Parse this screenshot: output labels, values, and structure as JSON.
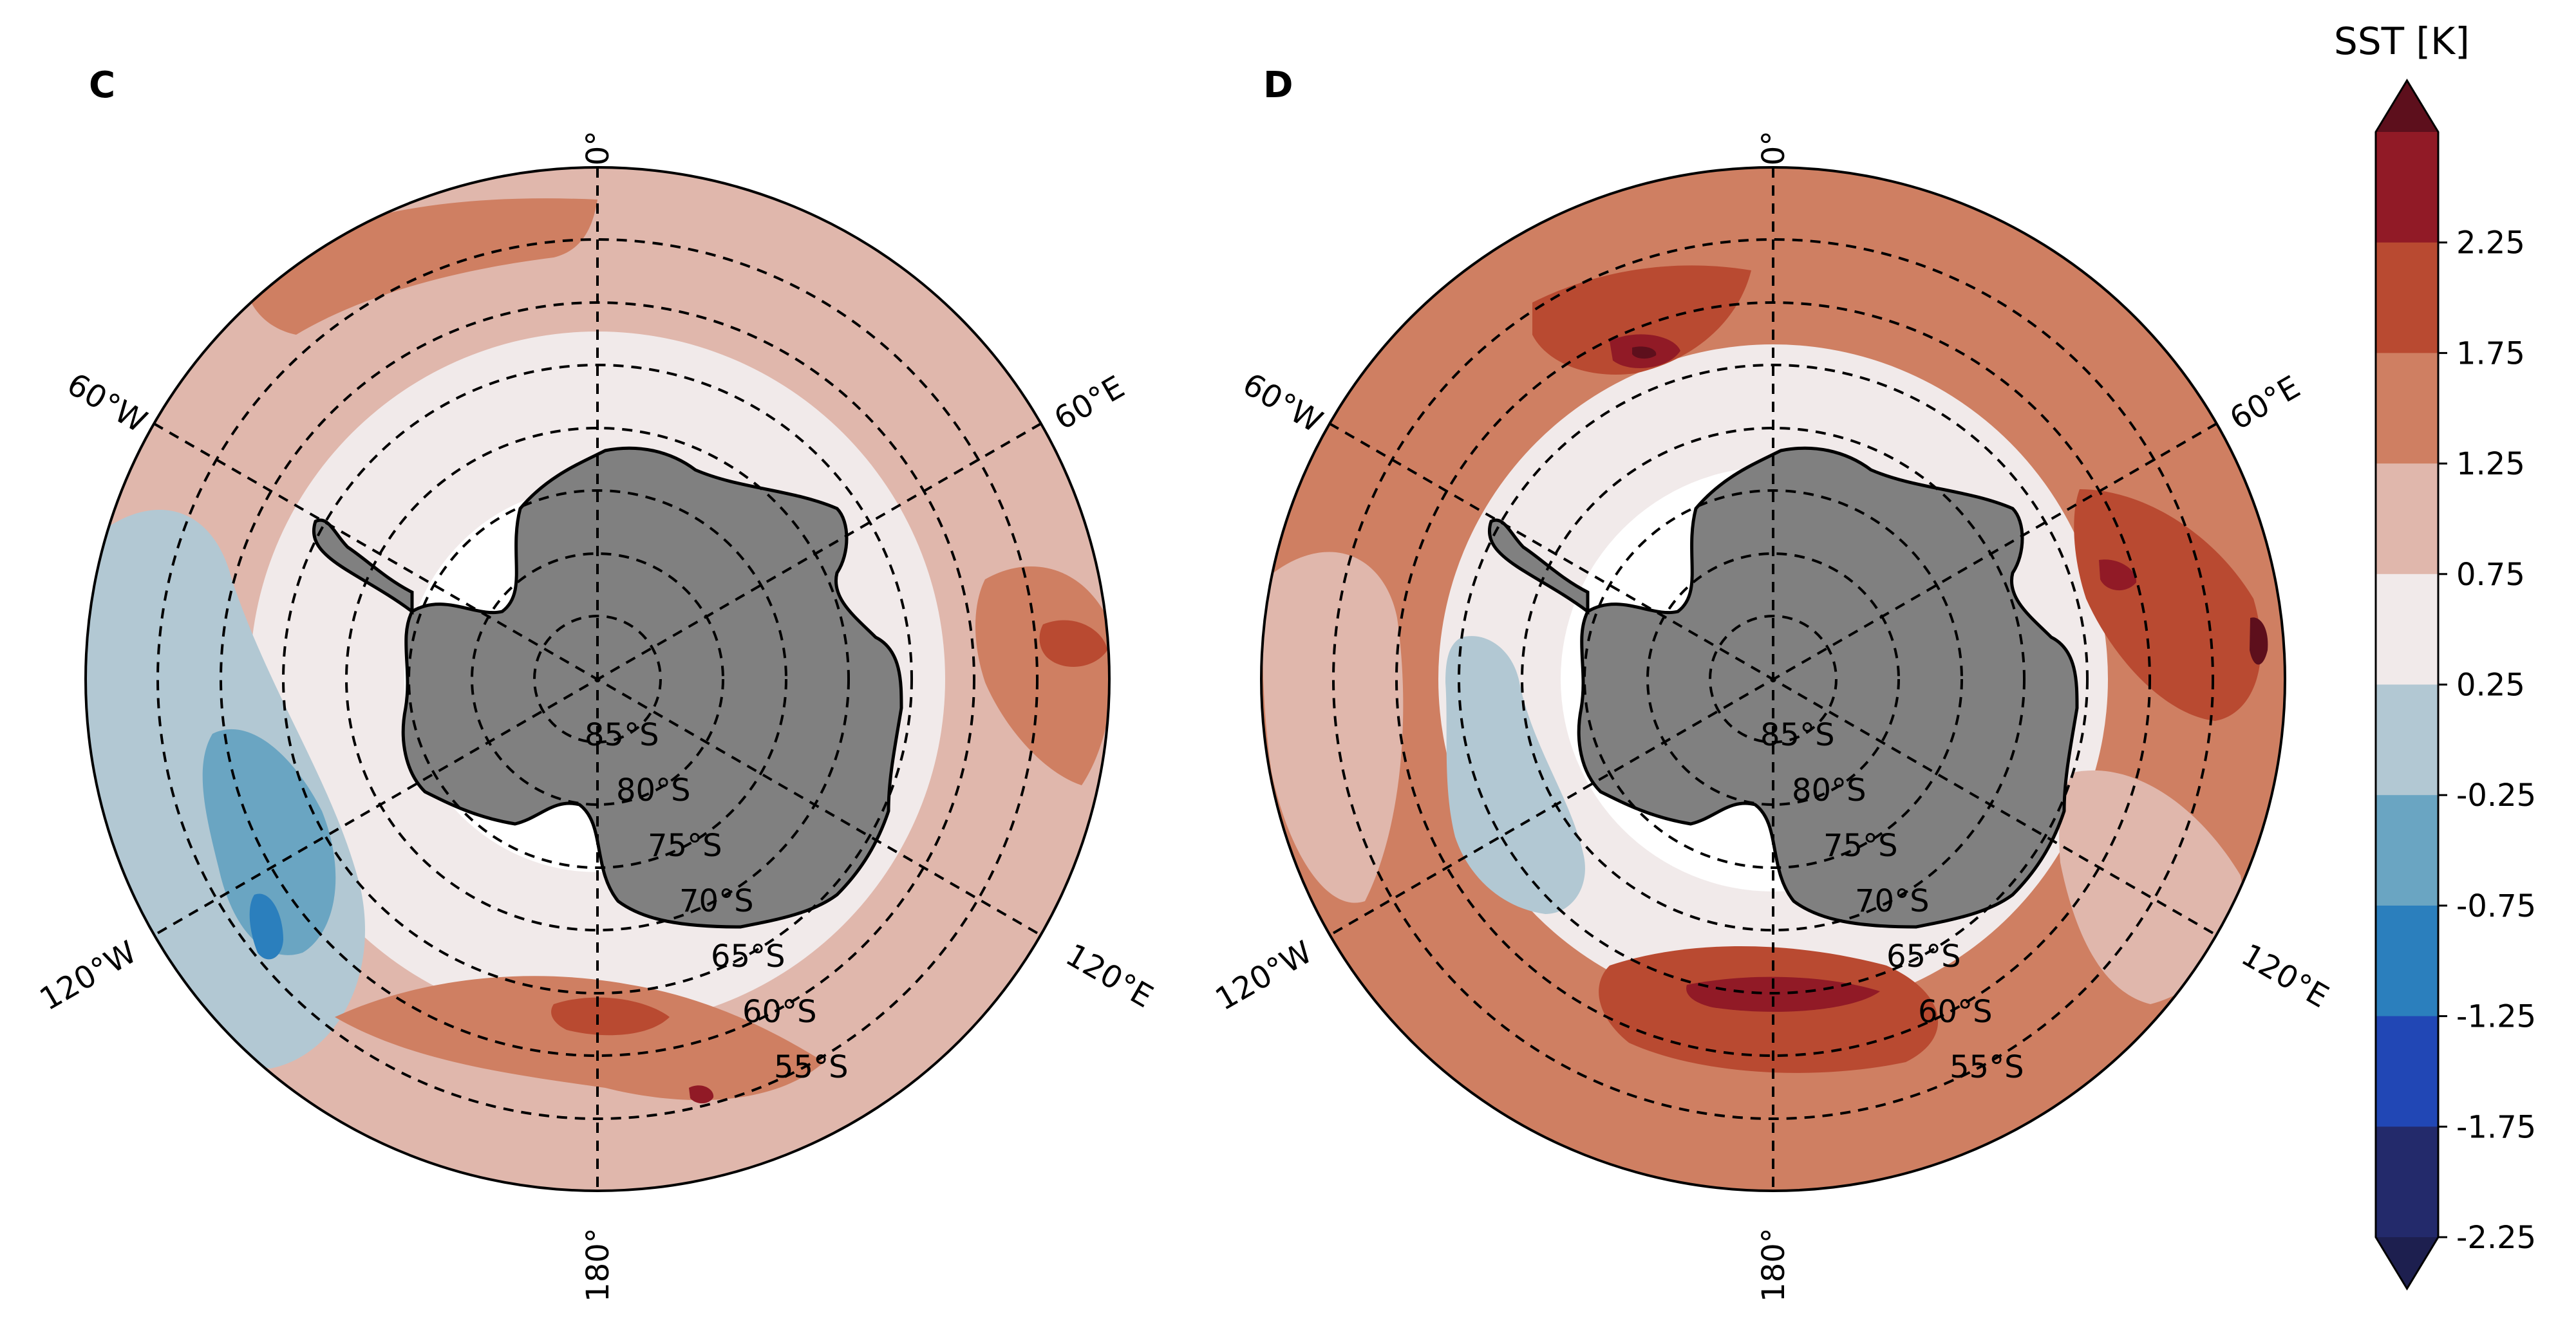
{
  "panels": [
    {
      "id": "C",
      "label": "C"
    },
    {
      "id": "D",
      "label": "D"
    }
  ],
  "longitude_labels": {
    "top": "0°",
    "bottom": "180°",
    "upper_left": "60°W",
    "upper_right": "60°E",
    "lower_left": "120°W",
    "lower_right": "120°E"
  },
  "latitude_labels": [
    "85°S",
    "80°S",
    "75°S",
    "70°S",
    "65°S",
    "60°S",
    "55°S"
  ],
  "colorbar": {
    "title": "SST [K]",
    "tick_labels": [
      "2.25",
      "1.75",
      "1.25",
      "0.75",
      "0.25",
      "-0.25",
      "-0.75",
      "-1.25",
      "-1.75",
      "-2.25"
    ],
    "levels": [
      -2.75,
      -2.25,
      -1.75,
      -1.25,
      -0.75,
      -0.25,
      0.25,
      0.75,
      1.25,
      1.75,
      2.25,
      2.75
    ],
    "colors": [
      "#1d1f4f",
      "#232a6b",
      "#2147b5",
      "#2b7fbd",
      "#6aa5c2",
      "#b2c8d3",
      "#f1eaea",
      "#e0b7ac",
      "#cf7f62",
      "#b94a31",
      "#911a26",
      "#5d0f1c"
    ],
    "extend": "both"
  },
  "colors": {
    "land": "#808080",
    "background": "#ffffff"
  }
}
